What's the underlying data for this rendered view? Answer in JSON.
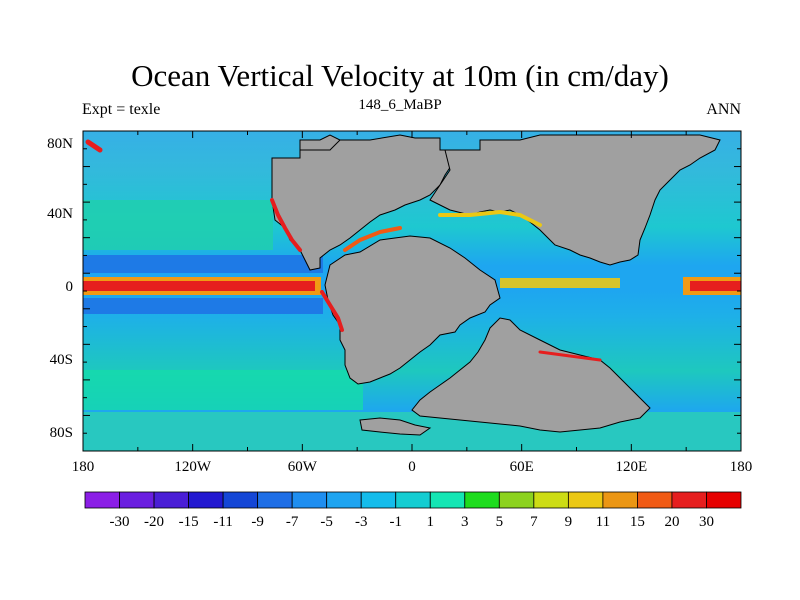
{
  "title": "Ocean Vertical Velocity at 10m (in cm/day)",
  "left_string": "Expt = texle",
  "center_string": "148_6_MaBP",
  "right_string": "ANN",
  "map": {
    "projection": "cylindrical-equidistant",
    "lon_range": [
      -180,
      180
    ],
    "lat_range": [
      -90,
      90
    ],
    "land_color": "#a0a0a0",
    "x_tick_labels": [
      "180",
      "120W",
      "60W",
      "0",
      "60E",
      "120E",
      "180"
    ],
    "y_tick_labels": [
      "80N",
      "40N",
      "0",
      "40S",
      "80S"
    ]
  },
  "colorbar": {
    "labels": [
      "-30",
      "-20",
      "-15",
      "-11",
      "-9",
      "-7",
      "-5",
      "-3",
      "-1",
      "1",
      "3",
      "5",
      "7",
      "9",
      "11",
      "15",
      "20",
      "30"
    ],
    "colors": [
      "#8b1ee6",
      "#6a1ee0",
      "#4a1ed6",
      "#2218d0",
      "#1446d6",
      "#1e6ee6",
      "#1e8ef0",
      "#1ea4f0",
      "#14bceb",
      "#14cdd2",
      "#14e6b4",
      "#1edc1e",
      "#8cd21e",
      "#cddc14",
      "#ebc814",
      "#eb9614",
      "#f05a14",
      "#e61e1e",
      "#e60000"
    ]
  }
}
